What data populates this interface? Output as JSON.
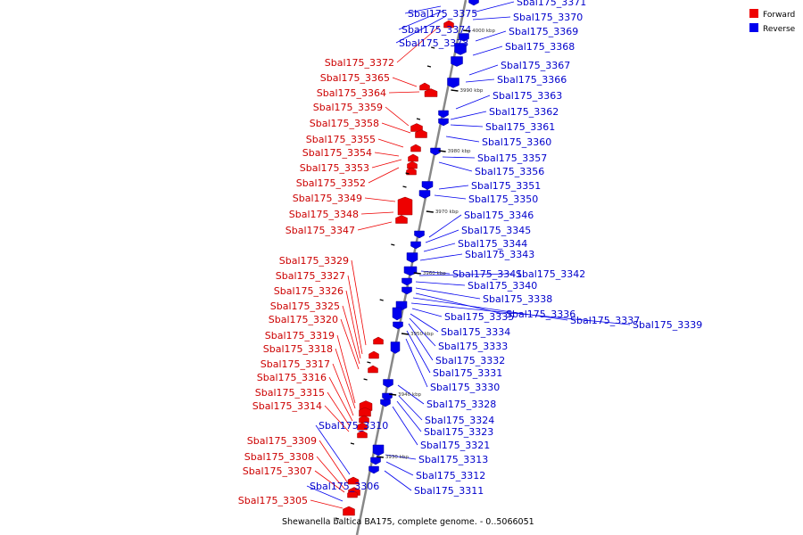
{
  "colors": {
    "forward": "#ee0000",
    "reverse": "#0000ee",
    "backbone": "#888888"
  },
  "legend": [
    {
      "key": "forward",
      "label": "Forward"
    },
    {
      "key": "reverse",
      "label": "Reverse"
    }
  ],
  "caption": "Shewanella baltica BA175, complete genome. - 0..5066051",
  "ruler": [
    "4000 kbp",
    "3990 kbp",
    "3980 kbp",
    "3970 kbp",
    "3960 kbp",
    "3950 kbp",
    "3940 kbp",
    "3930 kbp"
  ],
  "features": [
    {
      "id": "Sbal175_3375",
      "strand": "reverse"
    },
    {
      "id": "Sbal175_3374",
      "strand": "reverse"
    },
    {
      "id": "Sbal175_3373",
      "strand": "reverse"
    },
    {
      "id": "Sbal175_3372",
      "strand": "forward"
    },
    {
      "id": "Sbal175_3365",
      "strand": "forward"
    },
    {
      "id": "Sbal175_3364",
      "strand": "forward"
    },
    {
      "id": "Sbal175_3359",
      "strand": "forward"
    },
    {
      "id": "Sbal175_3358",
      "strand": "forward"
    },
    {
      "id": "Sbal175_3355",
      "strand": "forward"
    },
    {
      "id": "Sbal175_3354",
      "strand": "forward"
    },
    {
      "id": "Sbal175_3353",
      "strand": "forward"
    },
    {
      "id": "Sbal175_3352",
      "strand": "forward"
    },
    {
      "id": "Sbal175_3349",
      "strand": "forward"
    },
    {
      "id": "Sbal175_3348",
      "strand": "forward"
    },
    {
      "id": "Sbal175_3347",
      "strand": "forward"
    },
    {
      "id": "Sbal175_3329",
      "strand": "forward"
    },
    {
      "id": "Sbal175_3327",
      "strand": "forward"
    },
    {
      "id": "Sbal175_3326",
      "strand": "forward"
    },
    {
      "id": "Sbal175_3325",
      "strand": "forward"
    },
    {
      "id": "Sbal175_3320",
      "strand": "forward"
    },
    {
      "id": "Sbal175_3319",
      "strand": "forward"
    },
    {
      "id": "Sbal175_3318",
      "strand": "forward"
    },
    {
      "id": "Sbal175_3317",
      "strand": "forward"
    },
    {
      "id": "Sbal175_3316",
      "strand": "forward"
    },
    {
      "id": "Sbal175_3315",
      "strand": "forward"
    },
    {
      "id": "Sbal175_3314",
      "strand": "forward"
    },
    {
      "id": "Sbal175_3310",
      "strand": "reverse"
    },
    {
      "id": "Sbal175_3309",
      "strand": "forward"
    },
    {
      "id": "Sbal175_3308",
      "strand": "forward"
    },
    {
      "id": "Sbal175_3307",
      "strand": "forward"
    },
    {
      "id": "Sbal175_3306",
      "strand": "reverse"
    },
    {
      "id": "Sbal175_3305",
      "strand": "forward"
    },
    {
      "id": "Sbal175_3371",
      "strand": "reverse"
    },
    {
      "id": "Sbal175_3370",
      "strand": "reverse"
    },
    {
      "id": "Sbal175_3369",
      "strand": "reverse"
    },
    {
      "id": "Sbal175_3368",
      "strand": "reverse"
    },
    {
      "id": "Sbal175_3367",
      "strand": "reverse"
    },
    {
      "id": "Sbal175_3366",
      "strand": "reverse"
    },
    {
      "id": "Sbal175_3363",
      "strand": "reverse"
    },
    {
      "id": "Sbal175_3362",
      "strand": "reverse"
    },
    {
      "id": "Sbal175_3361",
      "strand": "reverse"
    },
    {
      "id": "Sbal175_3360",
      "strand": "reverse"
    },
    {
      "id": "Sbal175_3357",
      "strand": "reverse"
    },
    {
      "id": "Sbal175_3356",
      "strand": "reverse"
    },
    {
      "id": "Sbal175_3351",
      "strand": "reverse"
    },
    {
      "id": "Sbal175_3350",
      "strand": "reverse"
    },
    {
      "id": "Sbal175_3346",
      "strand": "reverse"
    },
    {
      "id": "Sbal175_3345",
      "strand": "reverse"
    },
    {
      "id": "Sbal175_3344",
      "strand": "reverse"
    },
    {
      "id": "Sbal175_3343",
      "strand": "reverse"
    },
    {
      "id": "Sbal175_3341",
      "strand": "reverse"
    },
    {
      "id": "Sbal175_3342",
      "strand": "reverse"
    },
    {
      "id": "Sbal175_3340",
      "strand": "reverse"
    },
    {
      "id": "Sbal175_3338",
      "strand": "reverse"
    },
    {
      "id": "Sbal175_3336",
      "strand": "reverse"
    },
    {
      "id": "Sbal175_3337",
      "strand": "reverse"
    },
    {
      "id": "Sbal175_3339",
      "strand": "reverse"
    },
    {
      "id": "Sbal175_3335",
      "strand": "reverse"
    },
    {
      "id": "Sbal175_3334",
      "strand": "reverse"
    },
    {
      "id": "Sbal175_3333",
      "strand": "reverse"
    },
    {
      "id": "Sbal175_3332",
      "strand": "reverse"
    },
    {
      "id": "Sbal175_3331",
      "strand": "reverse"
    },
    {
      "id": "Sbal175_3330",
      "strand": "reverse"
    },
    {
      "id": "Sbal175_3328",
      "strand": "reverse"
    },
    {
      "id": "Sbal175_3324",
      "strand": "reverse"
    },
    {
      "id": "Sbal175_3323",
      "strand": "reverse"
    },
    {
      "id": "Sbal175_3321",
      "strand": "reverse"
    },
    {
      "id": "Sbal175_3313",
      "strand": "reverse"
    },
    {
      "id": "Sbal175_3312",
      "strand": "reverse"
    },
    {
      "id": "Sbal175_3311",
      "strand": "reverse"
    }
  ]
}
